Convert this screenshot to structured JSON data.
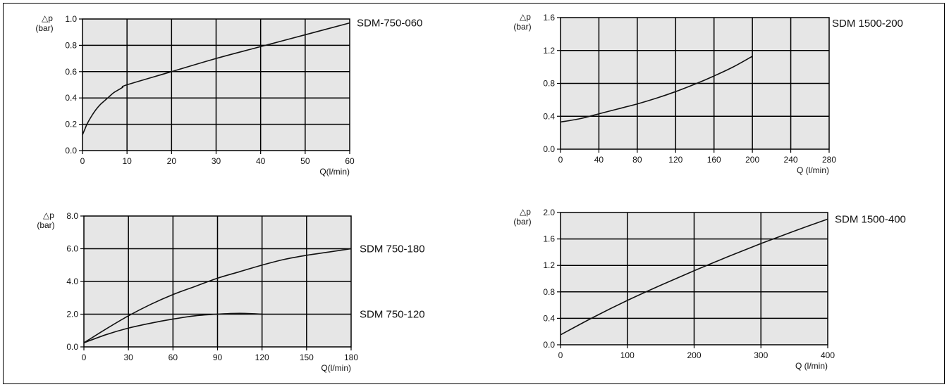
{
  "chart_data": [
    {
      "type": "line",
      "xlabel": "Q(l/min)",
      "ylabel": "△p",
      "ylabel_unit": "(bar)",
      "xlim": [
        0,
        60
      ],
      "ylim": [
        0,
        1.0
      ],
      "xticks": [
        "0",
        "10",
        "20",
        "30",
        "40",
        "50",
        "60"
      ],
      "yticks": [
        "0.0",
        "0.2",
        "0.4",
        "0.6",
        "0.8",
        "1.0"
      ],
      "grid": true,
      "series": [
        {
          "name": "SDM-750-060",
          "x": [
            0,
            0.5,
            1,
            2,
            3,
            4,
            5,
            6,
            7,
            8,
            9,
            10,
            20,
            30,
            40,
            50,
            60
          ],
          "y": [
            0.12,
            0.16,
            0.2,
            0.26,
            0.31,
            0.35,
            0.38,
            0.41,
            0.44,
            0.46,
            0.48,
            0.5,
            0.6,
            0.7,
            0.79,
            0.88,
            0.97
          ]
        }
      ]
    },
    {
      "type": "line",
      "xlabel": "Q (l/min)",
      "ylabel": "△p",
      "ylabel_unit": "(bar)",
      "xlim": [
        0,
        280
      ],
      "ylim": [
        0,
        1.6
      ],
      "xticks": [
        "0",
        "40",
        "80",
        "120",
        "160",
        "200",
        "240",
        "280"
      ],
      "yticks": [
        "0.0",
        "0.4",
        "0.8",
        "1.2",
        "1.6"
      ],
      "grid": true,
      "series": [
        {
          "name": "SDM 1500-200",
          "x": [
            0,
            20,
            40,
            60,
            80,
            100,
            120,
            140,
            160,
            180,
            200
          ],
          "y": [
            0.33,
            0.37,
            0.43,
            0.49,
            0.55,
            0.62,
            0.7,
            0.79,
            0.89,
            1.0,
            1.13
          ]
        }
      ]
    },
    {
      "type": "line",
      "xlabel": "Q(l/min)",
      "ylabel": "△p",
      "ylabel_unit": "(bar)",
      "xlim": [
        0,
        180
      ],
      "ylim": [
        0,
        8.0
      ],
      "xticks": [
        "0",
        "30",
        "60",
        "90",
        "120",
        "150",
        "180"
      ],
      "yticks": [
        "0.0",
        "2.0",
        "4.0",
        "6.0",
        "8.0"
      ],
      "grid": true,
      "series": [
        {
          "name": "SDM 750-180",
          "x": [
            0,
            15,
            30,
            45,
            60,
            75,
            90,
            105,
            120,
            135,
            150,
            165,
            180
          ],
          "y": [
            0.25,
            1.1,
            1.9,
            2.6,
            3.2,
            3.7,
            4.2,
            4.6,
            5.0,
            5.35,
            5.6,
            5.8,
            6.0
          ]
        },
        {
          "name": "SDM 750-120",
          "x": [
            0,
            15,
            30,
            45,
            60,
            75,
            90,
            105,
            120
          ],
          "y": [
            0.25,
            0.75,
            1.15,
            1.45,
            1.7,
            1.9,
            2.0,
            2.05,
            2.0
          ]
        }
      ]
    },
    {
      "type": "line",
      "xlabel": "Q (l/min)",
      "ylabel": "△p",
      "ylabel_unit": "(bar)",
      "xlim": [
        0,
        400
      ],
      "ylim": [
        0,
        2.0
      ],
      "xticks": [
        "0",
        "100",
        "200",
        "300",
        "400"
      ],
      "yticks": [
        "0.0",
        "0.4",
        "0.8",
        "1.2",
        "1.6",
        "2.0"
      ],
      "grid": true,
      "series": [
        {
          "name": "SDM 1500-400",
          "x": [
            0,
            50,
            100,
            150,
            200,
            250,
            300,
            350,
            400
          ],
          "y": [
            0.15,
            0.42,
            0.67,
            0.9,
            1.12,
            1.33,
            1.53,
            1.72,
            1.9
          ]
        }
      ]
    }
  ],
  "colors": {
    "plot_bg": "#e6e6e6",
    "grid": "#000000",
    "line": "#111111"
  }
}
